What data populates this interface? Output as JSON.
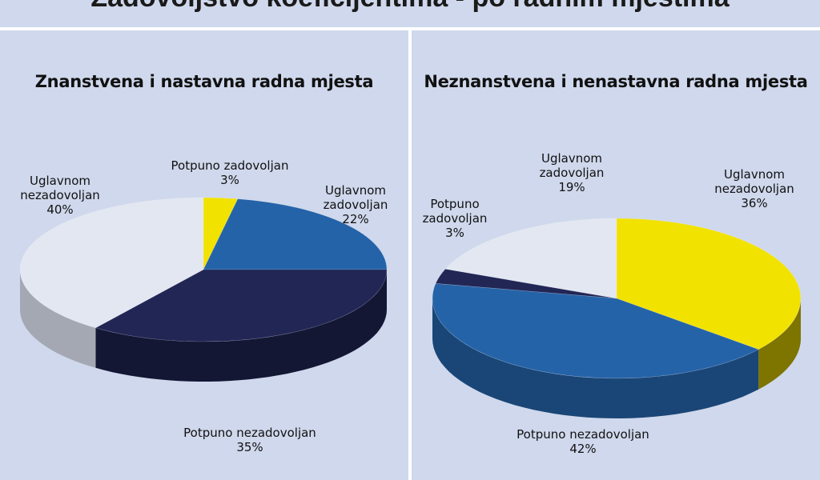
{
  "header": {
    "title": "Zadovoljstvo koeficijentima - po radnim mjestima"
  },
  "chart_data": [
    {
      "type": "pie",
      "title": "Znanstvena i nastavna radna mjesta",
      "slices": [
        {
          "label": "Potpuno zadovoljan",
          "value": 3,
          "pct": "3%",
          "color": "#f2e200",
          "side": "#8a8000"
        },
        {
          "label": "Uglavnom zadovoljan",
          "value": 22,
          "pct": "22%",
          "color": "#2563a8",
          "side": "#173e6b"
        },
        {
          "label": "Potpuno nezadovoljan",
          "value": 35,
          "pct": "35%",
          "color": "#212655",
          "side": "#131734"
        },
        {
          "label": "Uglavnom nezadovoljan",
          "value": 40,
          "pct": "40%",
          "color": "#e3e7f1",
          "side": "#a4a8b2"
        }
      ]
    },
    {
      "type": "pie",
      "title": "Neznanstvena i nenastavna radna mjesta",
      "slices": [
        {
          "label": "Uglavnom nezadovoljan",
          "value": 36,
          "pct": "36%",
          "color": "#f2e200",
          "side": "#7e7400"
        },
        {
          "label": "Potpuno nezadovoljan",
          "value": 42,
          "pct": "42%",
          "color": "#2563a8",
          "side": "#1a4677"
        },
        {
          "label": "Potpuno zadovoljan",
          "value": 3,
          "pct": "3%",
          "color": "#212655",
          "side": "#131734"
        },
        {
          "label": "Uglavnom zadovoljan",
          "value": 19,
          "pct": "19%",
          "color": "#e3e7f1",
          "side": "#a4a8b2"
        }
      ]
    }
  ]
}
